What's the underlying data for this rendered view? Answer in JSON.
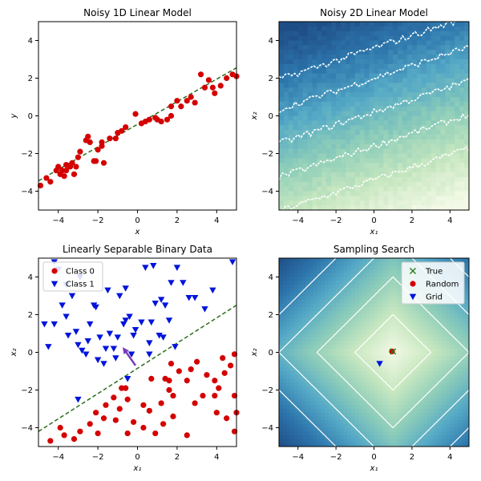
{
  "chart_data": [
    {
      "id": "p1",
      "type": "scatter",
      "title": "Noisy 1D Linear Model",
      "xlabel": "x",
      "ylabel": "y",
      "xlim": [
        -5,
        5
      ],
      "ylim": [
        -5,
        5
      ],
      "xticks": [
        -4,
        -2,
        0,
        2,
        4
      ],
      "yticks": [
        -4,
        -2,
        0,
        2,
        4
      ],
      "grid": false,
      "colors": {
        "points": "#d40000",
        "line": "#2a6e1a"
      },
      "series": [
        {
          "kind": "scatter",
          "points": [
            [
              -4.9,
              -3.7
            ],
            [
              -4.6,
              -3.3
            ],
            [
              -4.4,
              -3.5
            ],
            [
              -4.1,
              -2.9
            ],
            [
              -4.0,
              -2.7
            ],
            [
              -3.9,
              -3.1
            ],
            [
              -3.8,
              -2.9
            ],
            [
              -3.7,
              -3.2
            ],
            [
              -3.6,
              -2.6
            ],
            [
              -3.6,
              -2.9
            ],
            [
              -3.4,
              -2.7
            ],
            [
              -3.3,
              -2.5
            ],
            [
              -3.2,
              -3.1
            ],
            [
              -3.1,
              -2.7
            ],
            [
              -3.0,
              -2.2
            ],
            [
              -2.9,
              -1.9
            ],
            [
              -2.6,
              -1.3
            ],
            [
              -2.5,
              -1.1
            ],
            [
              -2.4,
              -1.4
            ],
            [
              -2.2,
              -2.4
            ],
            [
              -2.1,
              -2.4
            ],
            [
              -2.0,
              -1.8
            ],
            [
              -1.8,
              -1.4
            ],
            [
              -1.8,
              -1.6
            ],
            [
              -1.7,
              -2.5
            ],
            [
              -1.4,
              -1.2
            ],
            [
              -1.1,
              -1.2
            ],
            [
              -1.0,
              -0.9
            ],
            [
              -0.8,
              -0.8
            ],
            [
              -0.6,
              -0.6
            ],
            [
              -0.1,
              0.1
            ],
            [
              0.2,
              -0.4
            ],
            [
              0.4,
              -0.3
            ],
            [
              0.6,
              -0.2
            ],
            [
              0.9,
              -0.1
            ],
            [
              1.0,
              -0.2
            ],
            [
              1.2,
              -0.3
            ],
            [
              1.5,
              -0.2
            ],
            [
              1.7,
              0.5
            ],
            [
              1.7,
              -0.0
            ],
            [
              2.0,
              0.8
            ],
            [
              2.2,
              0.5
            ],
            [
              2.5,
              0.8
            ],
            [
              2.7,
              1.0
            ],
            [
              2.9,
              0.7
            ],
            [
              3.2,
              2.2
            ],
            [
              3.4,
              1.5
            ],
            [
              3.6,
              1.9
            ],
            [
              3.8,
              1.5
            ],
            [
              3.9,
              1.2
            ],
            [
              4.2,
              1.6
            ],
            [
              4.5,
              2.0
            ],
            [
              4.8,
              2.2
            ],
            [
              5.0,
              2.1
            ]
          ]
        },
        {
          "kind": "line",
          "style": "dashed",
          "points": [
            [
              -5,
              -3.45
            ],
            [
              5,
              2.55
            ]
          ]
        }
      ]
    },
    {
      "id": "p2",
      "type": "heatmap",
      "title": "Noisy 2D Linear Model",
      "xlabel": "x₁",
      "ylabel": "x₂",
      "xlim": [
        -5,
        5
      ],
      "ylim": [
        -5,
        5
      ],
      "xticks": [
        -4,
        -2,
        0,
        2,
        4
      ],
      "yticks": [
        -4,
        -2,
        0,
        2,
        4
      ],
      "colormap": [
        "#f3f9e6",
        "#c7e7c0",
        "#8dcdb9",
        "#55a9c6",
        "#2d76ac",
        "#1f4e86"
      ],
      "field": "0.2*x1 - 0.6*x2 + noise",
      "contour_levels_along_x2_at_x1_0": [
        -3.4,
        -1.6,
        0.2,
        2.0,
        3.6
      ]
    },
    {
      "id": "p3",
      "type": "scatter",
      "title": "Linearly Separable Binary Data",
      "xlabel": "x₁",
      "ylabel": "x₂",
      "xlim": [
        -5,
        5
      ],
      "ylim": [
        -5,
        5
      ],
      "xticks": [
        -4,
        -2,
        0,
        2,
        4
      ],
      "yticks": [
        -4,
        -2,
        0,
        2,
        4
      ],
      "legend_position": "top-left",
      "colors": {
        "class0": "#d40000",
        "class1": "#0014dc",
        "line": "#2a6e1a",
        "arrow": "#7a3bb8"
      },
      "series": [
        {
          "name": "Class 0",
          "marker": "circle",
          "points": [
            [
              -4.4,
              -4.7
            ],
            [
              -3.9,
              -4.0
            ],
            [
              -3.7,
              -4.4
            ],
            [
              -3.2,
              -4.6
            ],
            [
              -2.9,
              -4.2
            ],
            [
              -2.4,
              -3.8
            ],
            [
              -2.1,
              -3.2
            ],
            [
              -2.0,
              -4.3
            ],
            [
              -1.7,
              -3.5
            ],
            [
              -1.6,
              -2.8
            ],
            [
              -1.2,
              -2.4
            ],
            [
              -1.1,
              -3.6
            ],
            [
              -0.9,
              -3.0
            ],
            [
              -0.8,
              -1.9
            ],
            [
              -0.6,
              -1.9
            ],
            [
              -0.5,
              -2.5
            ],
            [
              -0.5,
              -4.3
            ],
            [
              -0.2,
              -3.7
            ],
            [
              0.3,
              -2.8
            ],
            [
              0.3,
              -4.0
            ],
            [
              0.6,
              -3.1
            ],
            [
              0.7,
              -1.4
            ],
            [
              0.9,
              -4.3
            ],
            [
              1.2,
              -2.7
            ],
            [
              1.3,
              -3.8
            ],
            [
              1.4,
              -1.4
            ],
            [
              1.6,
              -2.0
            ],
            [
              1.6,
              -1.5
            ],
            [
              1.7,
              -0.6
            ],
            [
              1.8,
              -2.3
            ],
            [
              1.8,
              -3.4
            ],
            [
              2.1,
              -1.0
            ],
            [
              2.5,
              -4.4
            ],
            [
              2.5,
              -1.5
            ],
            [
              2.7,
              -0.9
            ],
            [
              2.9,
              -2.7
            ],
            [
              3.0,
              -0.5
            ],
            [
              3.3,
              -2.3
            ],
            [
              3.5,
              -1.2
            ],
            [
              3.9,
              -1.5
            ],
            [
              3.9,
              -2.3
            ],
            [
              4.0,
              -3.2
            ],
            [
              4.1,
              -1.9
            ],
            [
              4.3,
              -0.3
            ],
            [
              4.4,
              -1.1
            ],
            [
              4.5,
              -3.5
            ],
            [
              4.7,
              -0.7
            ],
            [
              4.9,
              -2.3
            ],
            [
              4.9,
              -4.2
            ],
            [
              4.9,
              -0.1
            ],
            [
              5.0,
              -3.2
            ]
          ]
        },
        {
          "name": "Class 1",
          "marker": "triangle-down",
          "points": [
            [
              -4.7,
              1.5
            ],
            [
              -4.5,
              0.3
            ],
            [
              -4.2,
              1.5
            ],
            [
              -4.2,
              4.8
            ],
            [
              -4.0,
              4.4
            ],
            [
              -3.8,
              2.5
            ],
            [
              -3.6,
              3.6
            ],
            [
              -3.6,
              1.9
            ],
            [
              -3.5,
              0.9
            ],
            [
              -3.3,
              3.0
            ],
            [
              -3.1,
              1.1
            ],
            [
              -3.0,
              -2.5
            ],
            [
              -3.0,
              0.4
            ],
            [
              -2.9,
              4.0
            ],
            [
              -2.8,
              0.1
            ],
            [
              -2.6,
              -0.1
            ],
            [
              -2.5,
              0.6
            ],
            [
              -2.4,
              1.5
            ],
            [
              -2.2,
              2.5
            ],
            [
              -2.1,
              2.4
            ],
            [
              -2.0,
              -0.4
            ],
            [
              -1.9,
              0.8
            ],
            [
              -1.7,
              -0.6
            ],
            [
              -1.6,
              0.2
            ],
            [
              -1.5,
              3.3
            ],
            [
              -1.4,
              1.0
            ],
            [
              -1.2,
              0.2
            ],
            [
              -1.1,
              -0.3
            ],
            [
              -1.0,
              0.8
            ],
            [
              -0.9,
              3.0
            ],
            [
              -0.7,
              1.5
            ],
            [
              -0.6,
              1.7
            ],
            [
              -0.6,
              3.4
            ],
            [
              -0.5,
              -1.4
            ],
            [
              -0.4,
              1.9
            ],
            [
              -0.3,
              -0.1
            ],
            [
              -0.2,
              0.9
            ],
            [
              -0.1,
              1.2
            ],
            [
              0.2,
              1.6
            ],
            [
              0.4,
              4.5
            ],
            [
              0.6,
              0.5
            ],
            [
              0.6,
              -0.1
            ],
            [
              0.7,
              1.6
            ],
            [
              0.8,
              4.6
            ],
            [
              0.9,
              2.6
            ],
            [
              1.1,
              0.9
            ],
            [
              1.2,
              2.8
            ],
            [
              1.3,
              0.8
            ],
            [
              1.4,
              2.5
            ],
            [
              1.6,
              1.7
            ],
            [
              1.7,
              3.7
            ],
            [
              1.9,
              0.3
            ],
            [
              2.0,
              4.5
            ],
            [
              2.3,
              3.7
            ],
            [
              2.6,
              2.9
            ],
            [
              2.9,
              2.9
            ],
            [
              3.4,
              2.3
            ],
            [
              3.8,
              3.3
            ],
            [
              4.8,
              4.8
            ]
          ]
        },
        {
          "kind": "line",
          "style": "dashed",
          "points": [
            [
              -5,
              -4.2
            ],
            [
              5,
              2.5
            ]
          ]
        },
        {
          "kind": "arrow",
          "from": [
            -0.1,
            -0.7
          ],
          "to": [
            -0.7,
            0.2
          ]
        }
      ]
    },
    {
      "id": "p4",
      "type": "heatmap",
      "title": "Sampling Search",
      "xlabel": "x₁",
      "ylabel": "x₂",
      "xlim": [
        -5,
        5
      ],
      "ylim": [
        -5,
        5
      ],
      "xticks": [
        -4,
        -2,
        0,
        2,
        4
      ],
      "yticks": [
        -4,
        -2,
        0,
        2,
        4
      ],
      "legend_position": "top-right",
      "colormap": [
        "#f3f9e6",
        "#c7e7c0",
        "#8dcdb9",
        "#55a9c6",
        "#2d76ac",
        "#1f4e86"
      ],
      "field": "|x1 - 1| + |x2|",
      "contour_levels": [
        2,
        4,
        6,
        8
      ],
      "colors": {
        "true": "#2a7a1a",
        "random": "#d40000",
        "grid": "#0014dc"
      },
      "series": [
        {
          "name": "True",
          "marker": "x",
          "points": [
            [
              1.0,
              0.05
            ]
          ]
        },
        {
          "name": "Random",
          "marker": "circle",
          "points": [
            [
              0.95,
              0.05
            ]
          ]
        },
        {
          "name": "Grid",
          "marker": "triangle-down",
          "points": [
            [
              0.3,
              -0.6
            ]
          ]
        }
      ]
    }
  ]
}
